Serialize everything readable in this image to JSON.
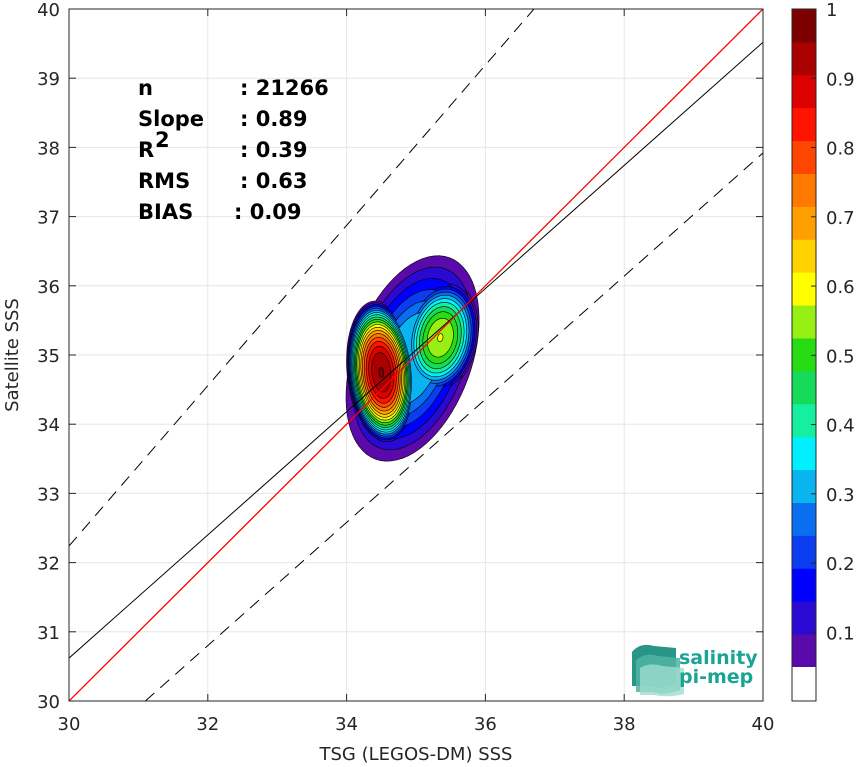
{
  "chart_data": {
    "type": "scatter",
    "subtype": "density-contour",
    "xlabel": "TSG (LEGOS-DM) SSS",
    "ylabel": "Satellite SSS",
    "xlim": [
      30,
      40
    ],
    "ylim": [
      30,
      40
    ],
    "xticks": [
      "30",
      "32",
      "34",
      "36",
      "38",
      "40"
    ],
    "yticks": [
      "30",
      "31",
      "32",
      "33",
      "34",
      "35",
      "36",
      "37",
      "38",
      "39",
      "40"
    ],
    "grid": true,
    "stats": [
      {
        "key": "n",
        "sup": "",
        "value": ": 21266"
      },
      {
        "key": "Slope",
        "sup": "",
        "value": ": 0.89"
      },
      {
        "key": "R",
        "sup": "2",
        "value": ": 0.39"
      },
      {
        "key": "RMS",
        "sup": "",
        "value": ": 0.63"
      },
      {
        "key": "BIAS",
        "sup": "",
        "value": ": 0.09"
      }
    ],
    "lines": {
      "identity": {
        "x": [
          30,
          40
        ],
        "y": [
          30,
          40
        ],
        "color": "#ff0000"
      },
      "regression": {
        "x": [
          30,
          40
        ],
        "y": [
          30.62,
          39.52
        ],
        "color": "#000000"
      },
      "upper_bound": {
        "x": [
          30,
          36.7
        ],
        "y": [
          32.24,
          40
        ],
        "color": "#000000",
        "style": "dashed"
      },
      "lower_bound": {
        "x": [
          31.1,
          40
        ],
        "y": [
          30,
          37.92
        ],
        "color": "#000000",
        "style": "dashed"
      }
    },
    "density_peaks": [
      {
        "x": 34.5,
        "y": 34.75,
        "level": 1.0
      },
      {
        "x": 35.35,
        "y": 35.25,
        "level": 0.6
      }
    ],
    "colorbar": {
      "min": 0.05,
      "max": 1.0,
      "tick_labels": [
        "0.1",
        "0.2",
        "0.3",
        "0.4",
        "0.5",
        "0.6",
        "0.7",
        "0.8",
        "0.9",
        "1"
      ],
      "tick_values": [
        0.1,
        0.2,
        0.3,
        0.4,
        0.5,
        0.6,
        0.7,
        0.8,
        0.9,
        1.0
      ],
      "colors": [
        "#5a0aaa",
        "#2a0ad2",
        "#0000ff",
        "#0a3cf0",
        "#0a6ef0",
        "#0ab4f0",
        "#00f0ff",
        "#14f0a0",
        "#14dc5a",
        "#28dc14",
        "#96f014",
        "#ffff00",
        "#ffd200",
        "#ffa000",
        "#ff7800",
        "#ff4600",
        "#ff1400",
        "#dc0000",
        "#aa0000",
        "#7d0000"
      ]
    }
  },
  "logo": {
    "line1": "salinity",
    "line2": "pi-mep",
    "color": "#1aa493"
  }
}
